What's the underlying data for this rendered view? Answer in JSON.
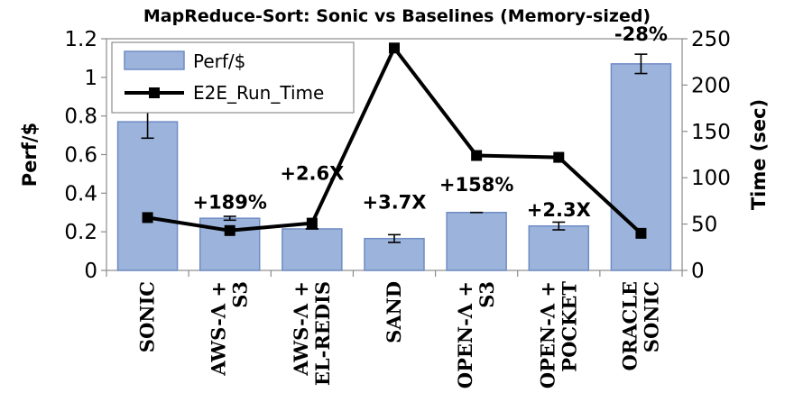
{
  "chart_data": {
    "type": "bar",
    "title": "MapReduce-Sort: Sonic vs Baselines (Memory-sized)",
    "categories": [
      [
        "Sonic"
      ],
      [
        "AWS-λ +",
        "S3"
      ],
      [
        "AWS-λ +",
        "EL-Redis"
      ],
      [
        "SAND"
      ],
      [
        "Open-λ +",
        "S3"
      ],
      [
        "Open-λ +",
        "Pocket"
      ],
      [
        "Oracle",
        "Sonic"
      ]
    ],
    "ylabel": "Perf/$",
    "y2label": "Time (sec)",
    "ylim": [
      0,
      1.2
    ],
    "y2lim": [
      0,
      250
    ],
    "yticks": [
      "0",
      "0.2",
      "0.4",
      "0.6",
      "0.8",
      "1",
      "1.2"
    ],
    "y2ticks": [
      "0",
      "50",
      "100",
      "150",
      "200",
      "250"
    ],
    "series": [
      {
        "name": "Perf/$",
        "type": "bar",
        "axis": "left",
        "color": "#9cb4dc",
        "values": [
          0.77,
          0.27,
          0.215,
          0.165,
          0.3,
          0.23,
          1.07
        ],
        "error": [
          0.085,
          0.01,
          0.0,
          0.02,
          0.0,
          0.02,
          0.05
        ]
      },
      {
        "name": "E2E_Run_Time",
        "type": "line",
        "axis": "right",
        "color": "#000000",
        "values": [
          57,
          43,
          51,
          240,
          124,
          122,
          40
        ]
      }
    ],
    "annotations": [
      {
        "text": "+189%",
        "category": 1,
        "y": 0.32
      },
      {
        "text": "+2.6X",
        "category": 2,
        "y": 0.47
      },
      {
        "text": "+3.7X",
        "category": 3,
        "y": 0.32
      },
      {
        "text": "+158%",
        "category": 4,
        "y": 0.41
      },
      {
        "text": "+2.3X",
        "category": 5,
        "y": 0.28
      },
      {
        "text": "-28%",
        "category": 6,
        "y": 1.19
      }
    ],
    "legend": {
      "placement": "top-left",
      "entries": [
        "Perf/$",
        "E2E_Run_Time"
      ]
    },
    "grid": false
  }
}
